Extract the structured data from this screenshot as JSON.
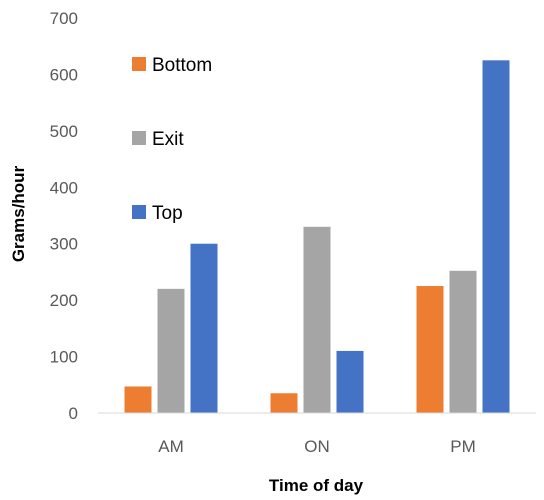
{
  "chart_data": {
    "type": "bar",
    "categories": [
      "AM",
      "ON",
      "PM"
    ],
    "series": [
      {
        "name": "Bottom",
        "values": [
          47,
          35,
          225
        ],
        "color": "#ED7D31"
      },
      {
        "name": "Exit",
        "values": [
          220,
          330,
          252
        ],
        "color": "#A5A5A5"
      },
      {
        "name": "Top",
        "values": [
          300,
          110,
          625
        ],
        "color": "#4472C4"
      }
    ],
    "xlabel": "Time of day",
    "ylabel": "Grams/hour",
    "ylim": [
      0,
      700
    ],
    "yticks": [
      "0",
      "100",
      "200",
      "300",
      "400",
      "500",
      "600",
      "700"
    ],
    "grid": false,
    "legend_position": "top-left"
  }
}
